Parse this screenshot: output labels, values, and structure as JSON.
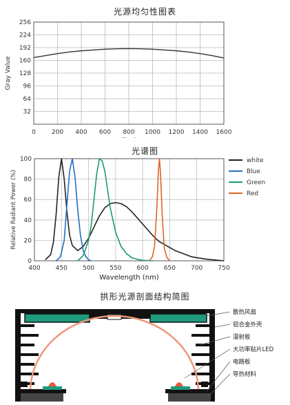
{
  "chart_data": [
    {
      "type": "line",
      "title": "光源均匀性图表",
      "xlabel": "Pixel",
      "ylabel": "Gray Value",
      "xlim": [
        0,
        1600
      ],
      "ylim": [
        0,
        256
      ],
      "xticks": [
        0,
        200,
        400,
        600,
        800,
        1000,
        1200,
        1400,
        1600
      ],
      "yticks": [
        32,
        64,
        96,
        128,
        160,
        192,
        224,
        256
      ],
      "grid": true,
      "series": [
        {
          "x": [
            0,
            100,
            200,
            300,
            400,
            500,
            600,
            700,
            800,
            900,
            1000,
            1100,
            1200,
            1300,
            1400,
            1500,
            1600
          ],
          "y": [
            167,
            172,
            177,
            181,
            184,
            186,
            188,
            189,
            189.5,
            189,
            188,
            186,
            184,
            181,
            177,
            172,
            166
          ],
          "color": "#333333"
        }
      ]
    },
    {
      "type": "line",
      "title": "光谱图",
      "xlabel": "Wavelength (nm)",
      "ylabel": "Relative Radiant Power (%)",
      "xlim": [
        400,
        750
      ],
      "ylim": [
        0,
        100
      ],
      "xticks": [
        400,
        450,
        500,
        550,
        600,
        650,
        700,
        750
      ],
      "yticks": [
        0,
        20,
        40,
        60,
        80,
        100
      ],
      "grid": true,
      "legend_position": "right",
      "series": [
        {
          "name": "white",
          "color": "#222222",
          "x": [
            420,
            430,
            435,
            440,
            445,
            450,
            455,
            460,
            465,
            470,
            480,
            490,
            500,
            510,
            520,
            530,
            540,
            550,
            560,
            570,
            580,
            590,
            600,
            610,
            620,
            630,
            640,
            650,
            660,
            670,
            680,
            690,
            700,
            720,
            740,
            750
          ],
          "y": [
            1,
            6,
            18,
            45,
            82,
            100,
            80,
            48,
            25,
            15,
            10,
            14,
            22,
            33,
            44,
            52,
            56,
            57,
            56,
            53,
            48,
            42,
            36,
            30,
            24,
            19,
            16,
            13,
            10,
            8,
            6,
            4,
            3,
            1.5,
            0.5,
            0
          ]
        },
        {
          "name": "Blue",
          "color": "#1f6fc0",
          "x": [
            440,
            448,
            455,
            460,
            465,
            470,
            475,
            480,
            485,
            490,
            495,
            500,
            505
          ],
          "y": [
            0,
            4,
            20,
            55,
            88,
            100,
            82,
            50,
            25,
            10,
            4,
            1,
            0
          ]
        },
        {
          "name": "Green",
          "color": "#1a9a6c",
          "x": [
            480,
            490,
            500,
            505,
            510,
            515,
            520,
            525,
            530,
            535,
            540,
            550,
            560,
            570,
            580,
            590,
            600,
            620
          ],
          "y": [
            0,
            5,
            20,
            35,
            60,
            85,
            100,
            98,
            88,
            70,
            52,
            28,
            14,
            7,
            3,
            1.5,
            0.5,
            0
          ]
        },
        {
          "name": "Red",
          "color": "#e06226",
          "x": [
            612,
            618,
            622,
            626,
            629,
            631,
            633,
            636,
            640,
            645,
            650
          ],
          "y": [
            0,
            4,
            15,
            50,
            88,
            100,
            85,
            45,
            12,
            3,
            0
          ]
        }
      ]
    }
  ],
  "diagram": {
    "title": "拱形光源剖面结构简图",
    "labels": [
      "散热风扇",
      "铝合金外壳",
      "漫射板",
      "大功率贴片LED",
      "电路板",
      "导热材料"
    ],
    "colors": {
      "arc": "#f0957a",
      "fan": "#1f9a7d",
      "frame": "#111111",
      "board": "#1f9a7d",
      "led": "#e85a3a"
    }
  }
}
